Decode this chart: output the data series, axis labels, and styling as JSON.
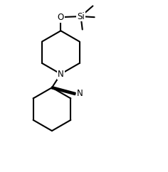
{
  "background_color": "#ffffff",
  "line_color": "#000000",
  "line_width": 1.5,
  "font_size": 8.5,
  "figsize": [
    2.36,
    2.42
  ],
  "dpi": 100,
  "xlim": [
    0,
    10
  ],
  "ylim": [
    0,
    10.5
  ]
}
